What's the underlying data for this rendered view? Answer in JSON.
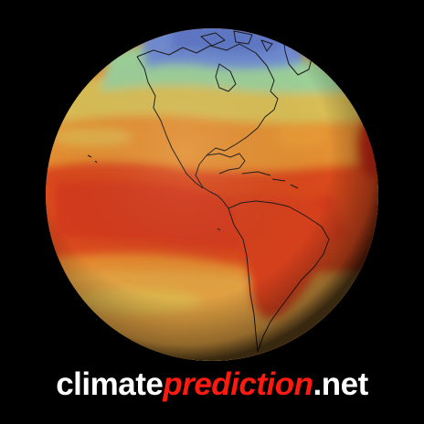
{
  "logo": {
    "part1": "climate",
    "part2": "prediction",
    "part3": ".net"
  },
  "colors": {
    "background": "#000000",
    "logo_white": "#ffffff",
    "logo_red": "#ff1a10",
    "cold": "#5f7fc8",
    "cool": "#8fd0a8",
    "mild": "#d7c25a",
    "warm": "#e8952e",
    "hot": "#d9451f",
    "coastline": "#1a1a1a"
  },
  "globe_icon": "earth-globe-temperature-map"
}
